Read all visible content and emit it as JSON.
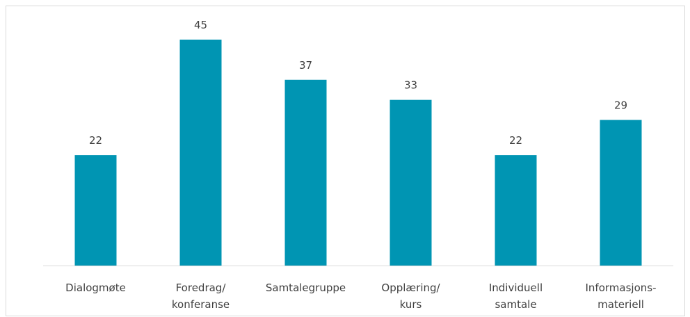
{
  "chart_data": {
    "type": "bar",
    "categories": [
      "Dialogmøte",
      "Foredrag/\nkonferanse",
      "Samtalegruppe",
      "Opplæring/\nkurs",
      "Individuell\nsamtale",
      "Informasjons-\nmateriell"
    ],
    "values": [
      22,
      45,
      37,
      33,
      22,
      29
    ],
    "color": "#0095b3"
  }
}
